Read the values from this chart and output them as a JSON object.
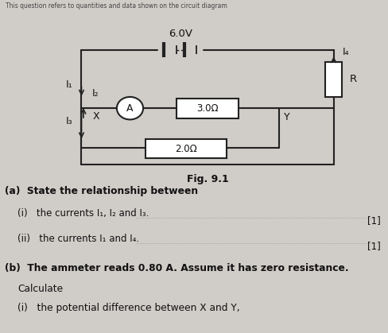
{
  "bg_color": "#d0ccc8",
  "voltage_label": "6.0V",
  "res1_label": "3.0Ω",
  "res2_label": "2.0Ω",
  "fig_label": "Fig. 9.1",
  "R_label": "R",
  "A_label": "A",
  "X_label": "X",
  "Y_label": "Y",
  "I1_label": "I₁",
  "I2_label": "I₂",
  "I3_label": "I₃",
  "I4_label": "I₄",
  "qa_text": "(a)  State the relationship between",
  "qi_text": "(i)   the currents I₁, I₂ and I₃.",
  "qii_text": "(ii)   the currents I₁ and I₄.",
  "qb_text": "(b)  The ammeter reads 0.80 A. Assume it has zero resistance.",
  "qb2_text": "Calculate",
  "qbi_text": "(i)   the potential difference between X and Y,",
  "mark1": "[1]",
  "mark2": "[1]",
  "line_color": "#222222",
  "text_color": "#111111"
}
